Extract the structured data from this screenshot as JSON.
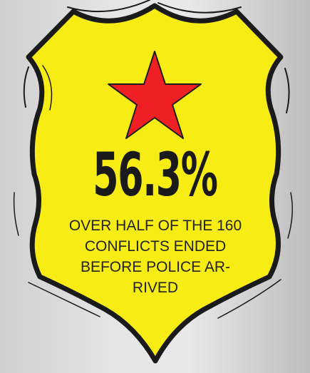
{
  "badge": {
    "fill_color": "#f7ec14",
    "outline_color": "#1a1a1a",
    "star_color": "#ee2024",
    "star_icon": "star-icon"
  },
  "headline": "56.3%",
  "caption": {
    "lines": [
      "OVER HALF OF THE 160",
      "CONFLICTS ENDED",
      "BEFORE POLICE AR-",
      "RIVED"
    ]
  }
}
